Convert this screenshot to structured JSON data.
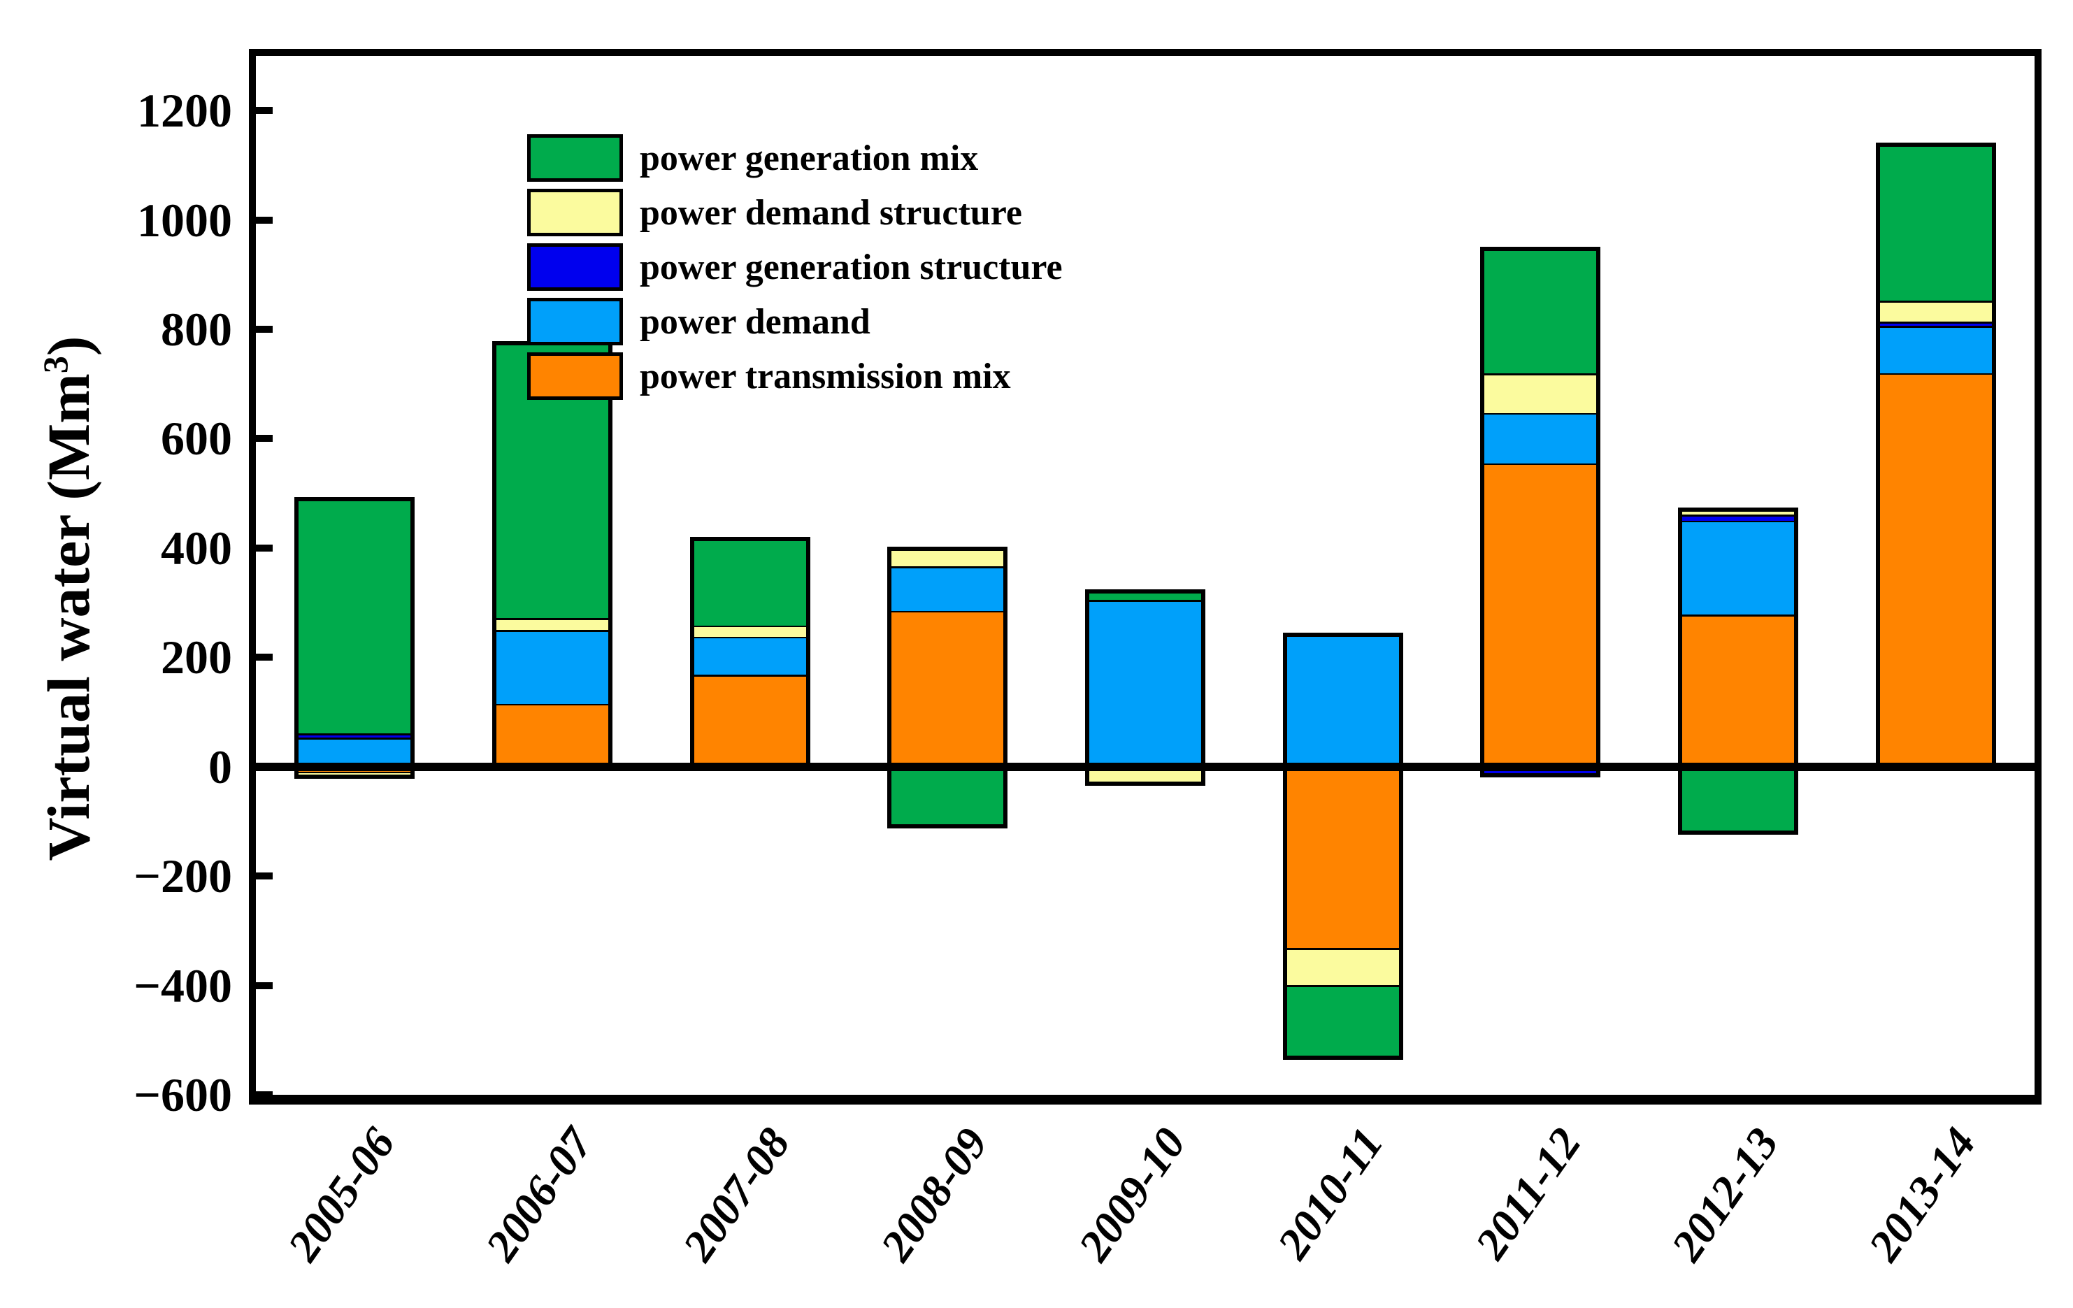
{
  "figure": {
    "background": "#ffffff",
    "y_axis": {
      "title_prefix": "Virtual water (Mm",
      "title_sup": "3",
      "title_suffix": ")",
      "tick_labels": [
        "1200",
        "1000",
        "800",
        "600",
        "400",
        "200",
        "0",
        "−200",
        "−400",
        "−600"
      ]
    },
    "legend": {
      "items": [
        {
          "label": "power generation mix",
          "color": "#00AB4C"
        },
        {
          "label": "power demand structure",
          "color": "#FBFB9E"
        },
        {
          "label": "power generation structure",
          "color": "#0000EE"
        },
        {
          "label": "power demand",
          "color": "#00A0FA"
        },
        {
          "label": "power transmission mix",
          "color": "#FF8400"
        }
      ]
    }
  },
  "chart_data": {
    "type": "bar",
    "stacked": true,
    "title": "",
    "xlabel": "",
    "ylabel": "Virtual water (Mm³)",
    "ylim": [
      -600,
      1300
    ],
    "ytick_step": 200,
    "grid": false,
    "legend_position": "upper-left-inside",
    "categories": [
      "2005-06",
      "2006-07",
      "2007-08",
      "2008-09",
      "2009-10",
      "2010-11",
      "2011-12",
      "2012-13",
      "2013-14"
    ],
    "series": [
      {
        "name": "power transmission mix",
        "color": "#FF8400",
        "values": [
          -12,
          115,
          168,
          285,
          0,
          -335,
          555,
          278,
          720
        ]
      },
      {
        "name": "power demand",
        "color": "#00A0FA",
        "values": [
          53,
          135,
          70,
          81,
          305,
          245,
          92,
          172,
          86
        ]
      },
      {
        "name": "power generation structure",
        "color": "#0000EE",
        "values": [
          8,
          0,
          0,
          0,
          0,
          0,
          -20,
          11,
          8
        ]
      },
      {
        "name": "power demand structure",
        "color": "#FBFB9E",
        "values": [
          -10,
          22,
          20,
          36,
          -35,
          -68,
          72,
          13,
          38
        ]
      },
      {
        "name": "power generation mix",
        "color": "#00AB4C",
        "values": [
          432,
          506,
          162,
          -113,
          20,
          -133,
          232,
          -124,
          290
        ]
      }
    ],
    "positive_stack_totals": [
      493,
      778,
      420,
      402,
      325,
      245,
      951,
      474,
      1142
    ],
    "negative_stack_totals": [
      -22,
      0,
      0,
      -113,
      -35,
      -536,
      -20,
      -124,
      0
    ]
  }
}
